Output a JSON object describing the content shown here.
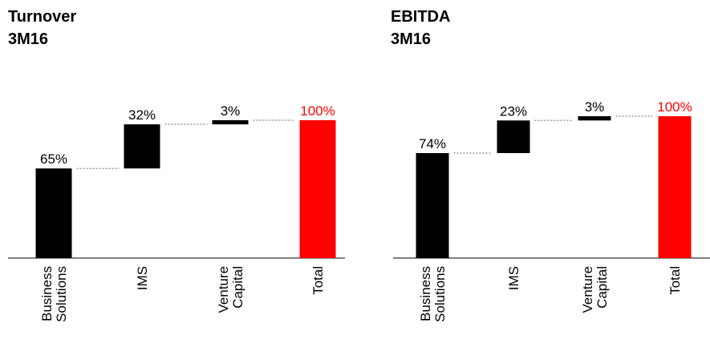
{
  "chart_data": [
    {
      "type": "waterfall",
      "title": "Turnover",
      "subtitle": "3M16",
      "categories": [
        "Business Solutions",
        "IMS",
        "Venture Capital",
        "Total"
      ],
      "values": [
        65,
        32,
        3,
        100
      ],
      "value_labels": [
        "65%",
        "32%",
        "3%",
        "100%"
      ],
      "totals": [
        false,
        false,
        false,
        true
      ],
      "colors": [
        "#000000",
        "#000000",
        "#000000",
        "#ff0000"
      ],
      "ylim": [
        0,
        100
      ]
    },
    {
      "type": "waterfall",
      "title": "EBITDA",
      "subtitle": "3M16",
      "categories": [
        "Business Solutions",
        "IMS",
        "Venture Capital",
        "Total"
      ],
      "values": [
        74,
        23,
        3,
        100
      ],
      "value_labels": [
        "74%",
        "23%",
        "3%",
        "100%"
      ],
      "totals": [
        false,
        false,
        false,
        true
      ],
      "colors": [
        "#000000",
        "#000000",
        "#000000",
        "#ff0000"
      ],
      "ylim": [
        0,
        100
      ]
    }
  ]
}
